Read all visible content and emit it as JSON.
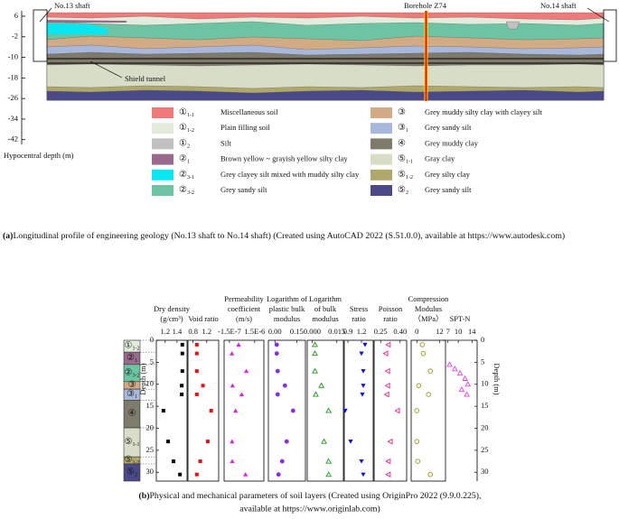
{
  "figure_a_caption": {
    "label": "(a)",
    "text": "Longitudinal profile of engineering geology (No.13 shaft to No.14 shaft) (Created using AutoCAD 2022 (S.51.0.0), available at https://www.autodesk.com)"
  },
  "figure_b_caption": {
    "label": "(b)",
    "lines": [
      "Physical and mechanical parameters of soil layers (Created using OriginPro 2022 (9.9.0.225),",
      "available at https://www.originlab.com)"
    ]
  },
  "chart_data": [
    {
      "type": "profile",
      "ylabel": "Hypocentral depth (m)",
      "ylim": [
        8,
        -43.5
      ],
      "yticks": [
        6,
        -2,
        -10,
        -18,
        -26,
        -34,
        -42
      ],
      "annotations": [
        "No.13 shaft",
        "No.14 shaft",
        "Borehole Z74",
        "Shield tunnel"
      ],
      "legend": [
        {
          "symbol": "①",
          "sub": "1-1",
          "name": "Miscellaneous soil",
          "color": "#f07a7a"
        },
        {
          "symbol": "①",
          "sub": "1-2",
          "name": "Plain filling soil",
          "color": "#e3ecdc"
        },
        {
          "symbol": "①",
          "sub": "2",
          "name": "Silt",
          "color": "#c2c0c0"
        },
        {
          "symbol": "②",
          "sub": "1",
          "name": "Brown yellow ~ grayish yellow silty clay",
          "color": "#9a6a8c"
        },
        {
          "symbol": "②",
          "sub": "3-1",
          "name": "Grey clayey silt mixed with muddy silty clay",
          "color": "#08e6f2"
        },
        {
          "symbol": "②",
          "sub": "3-2",
          "name": "Grey sandy silt",
          "color": "#6cc4a2"
        },
        {
          "symbol": "③",
          "name": "Grey muddy silty clay with clayey silt",
          "color": "#d2aa84"
        },
        {
          "symbol": "③",
          "sub": "1",
          "name": "Grey sandy silt",
          "color": "#a8b8dc"
        },
        {
          "symbol": "④",
          "name": "Grey muddy clay",
          "color": "#7e7a6c"
        },
        {
          "symbol": "⑤",
          "sub": "1-1",
          "name": "Gray clay",
          "color": "#d8ddc8"
        },
        {
          "symbol": "⑤",
          "sub": "1-2",
          "name": "Grey silty clay",
          "color": "#b0a868"
        },
        {
          "symbol": "⑤",
          "sub": "2",
          "name": "Grey sandy silt",
          "color": "#4a4a8a"
        }
      ]
    },
    {
      "type": "strata",
      "ylabel": "Depth (m)",
      "ylim": [
        0,
        32
      ],
      "yticks": [
        0,
        5,
        10,
        15,
        20,
        25,
        30
      ],
      "strata": [
        {
          "symbol": "①",
          "sub": "1-2",
          "top": 0,
          "bottom": 2.7,
          "color": "#e3ecdc"
        },
        {
          "symbol": "②",
          "sub": "1",
          "top": 2.7,
          "bottom": 5.5,
          "color": "#9a6a8c"
        },
        {
          "symbol": "②",
          "sub": "3-2",
          "top": 5.5,
          "bottom": 9.4,
          "color": "#6cc4a2"
        },
        {
          "symbol": "③",
          "top": 9.4,
          "bottom": 11.1,
          "color": "#d2aa84"
        },
        {
          "symbol": "③",
          "sub": "1",
          "top": 11.1,
          "bottom": 13.6,
          "color": "#a8b8dc"
        },
        {
          "symbol": "④",
          "top": 13.6,
          "bottom": 19.9,
          "color": "#7e7a6c"
        },
        {
          "symbol": "⑤",
          "sub": "1-1",
          "top": 19.9,
          "bottom": 26.5,
          "color": "#d8ddc8"
        },
        {
          "symbol": "⑤",
          "sub": "1-2",
          "top": 26.5,
          "bottom": 28.1,
          "color": "#b0a868"
        },
        {
          "symbol": "⑤",
          "sub": "2",
          "top": 28.1,
          "bottom": 32,
          "color": "#4a4a8a"
        }
      ]
    },
    {
      "type": "scatter",
      "xlabel": [
        "Dry density",
        "(g/cm³)"
      ],
      "xlim": [
        1.05,
        1.57
      ],
      "xticks": [
        1.2,
        1.4
      ],
      "ylim": [
        0,
        32
      ],
      "marker": "square",
      "color": "#000000",
      "x": [
        1.49,
        1.49,
        1.49,
        1.48,
        1.48,
        1.17,
        1.25,
        1.34,
        1.45
      ],
      "y": [
        1,
        3,
        7,
        10.3,
        12.3,
        16,
        23,
        27.5,
        30.5
      ]
    },
    {
      "type": "scatter",
      "xlabel": [
        "Void ratio"
      ],
      "xlim": [
        0.65,
        1.55
      ],
      "xticks": [
        0.8,
        1.2
      ],
      "ylim": [
        0,
        32
      ],
      "marker": "square",
      "color": "#e81010",
      "x": [
        0.91,
        0.91,
        0.91,
        1.09,
        0.91,
        1.33,
        1.23,
        1.01,
        0.91
      ],
      "y": [
        1,
        3,
        7,
        10.3,
        12.3,
        16,
        23,
        27.5,
        30.5
      ]
    },
    {
      "type": "scatter",
      "xlabel": [
        "Permeability",
        "coefficient",
        "(m/s)"
      ],
      "xlim": [
        -5e-07,
        2.1e-06
      ],
      "xticks": [
        {
          "value": -1.5e-07,
          "label": "-1.5E-7"
        },
        {
          "value": 1.5e-06,
          "label": "1.5E-6"
        }
      ],
      "ylim": [
        0,
        32
      ],
      "marker": "triangle",
      "color": "#e020e0",
      "x": [
        4.5e-07,
        1e-08,
        9.5e-07,
        5e-08,
        6.5e-07,
        2.5e-07,
        2e-08,
        3e-08,
        9e-07
      ],
      "y": [
        1,
        3,
        7,
        10.3,
        12.3,
        16,
        23,
        27.5,
        30.5
      ]
    },
    {
      "type": "scatter",
      "xlabel": [
        "Logarithm of",
        "plastic bulk",
        "modulus"
      ],
      "xlim": [
        -0.045,
        0.21
      ],
      "xticks": [
        {
          "value": 0,
          "label": "0.00"
        },
        0.15
      ],
      "ylim": [
        0,
        32
      ],
      "marker": "circle",
      "color": "#8a2be2",
      "x": [
        0.0125,
        0.0125,
        0.019,
        0.069,
        0.019,
        0.125,
        0.081,
        0.05,
        0.025
      ],
      "y": [
        1,
        3,
        7,
        10.3,
        12.3,
        16,
        23,
        27.5,
        30.5
      ]
    },
    {
      "type": "scatter",
      "xlabel": [
        "Logarithm",
        "of bulk",
        "modulus"
      ],
      "xlim": [
        -0.003,
        0.019
      ],
      "xticks": [
        {
          "value": 0,
          "label": "0.000"
        },
        0.015
      ],
      "ylim": [
        0,
        32
      ],
      "marker": "triangle-open",
      "color": "#1a9a1a",
      "x": [
        0.0017,
        0.0017,
        0.0017,
        0.0056,
        0.0022,
        0.01,
        0.0072,
        0.01,
        0.01
      ],
      "y": [
        1,
        3,
        7,
        10.3,
        12.3,
        16,
        23,
        27.5,
        30.5
      ]
    },
    {
      "type": "scatter",
      "xlabel": [
        "Stress",
        "ratio"
      ],
      "xlim": [
        0.82,
        1.46
      ],
      "xticks": [
        0.9,
        1.2
      ],
      "ylim": [
        0,
        32
      ],
      "marker": "triangle-down",
      "color": "#1010e0",
      "x": [
        1.28,
        1.2,
        1.24,
        1.24,
        1.22,
        0.84,
        0.96,
        1.2,
        1.24
      ],
      "y": [
        1,
        3,
        7,
        10.3,
        12.3,
        16,
        23,
        27.5,
        30.5
      ]
    },
    {
      "type": "scatter",
      "xlabel": [
        "Poisson",
        "ratio"
      ],
      "xlim": [
        0.2,
        0.45
      ],
      "xticks": [
        0.25,
        {
          "value": 0.4,
          "label": "0.40"
        }
      ],
      "ylim": [
        0,
        32
      ],
      "marker": "triangle-left-open",
      "color": "#f0208a",
      "x": [
        0.31,
        0.29,
        0.305,
        0.305,
        0.298,
        0.38,
        0.325,
        0.31,
        0.31
      ],
      "y": [
        1,
        3,
        7,
        10.3,
        12.3,
        16,
        23,
        27.5,
        30.5
      ]
    },
    {
      "type": "scatter",
      "xlabel": [
        "Compression",
        "Modulus",
        "（MPa）"
      ],
      "xlim": [
        -3,
        15.2
      ],
      "xticks": [
        0,
        12
      ],
      "ylim": [
        0,
        32
      ],
      "marker": "circle-open",
      "color": "#9a9a10",
      "x": [
        2.9,
        3.4,
        7.2,
        1,
        6.2,
        0,
        0,
        0.5,
        7.2
      ],
      "y": [
        1,
        3,
        7,
        10.3,
        12.3,
        16,
        23,
        27.5,
        30.5
      ]
    },
    {
      "type": "scatter",
      "xlabel": [
        "SPT-N"
      ],
      "xlim": [
        5.5,
        15.5
      ],
      "xticks": [
        7,
        10,
        14
      ],
      "ylim": [
        0,
        32
      ],
      "yticks": [
        0,
        5,
        10,
        15,
        20,
        25,
        30
      ],
      "ylabel": "Depth (m)",
      "axis_side": "right",
      "marker": "triangle-open",
      "color": "#e040e0",
      "x": [
        7.5,
        9,
        10.5,
        12,
        12.8,
        11,
        12.5
      ],
      "y": [
        5.5,
        6.5,
        7.5,
        8.7,
        10,
        11.2,
        12.3
      ]
    }
  ]
}
